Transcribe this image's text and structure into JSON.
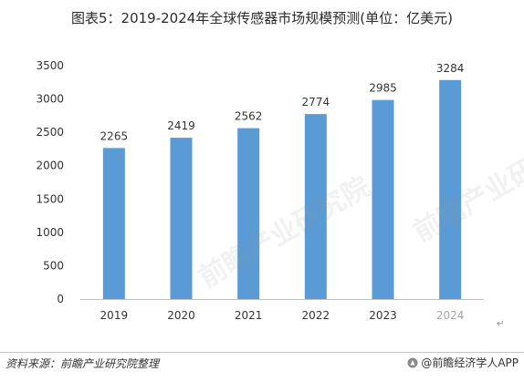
{
  "title": "图表5：2019-2024年全球传感器市场规模预测(单位：亿美元)",
  "chart_data": {
    "type": "bar",
    "title": "图表5：2019-2024年全球传感器市场规模预测(单位：亿美元)",
    "xlabel": "",
    "ylabel": "",
    "categories": [
      "2019",
      "2020",
      "2021",
      "2022",
      "2023",
      "2024"
    ],
    "values": [
      2265,
      2419,
      2562,
      2774,
      2985,
      3284
    ],
    "ylim": [
      0,
      3500
    ],
    "yticks": [
      "0",
      "500",
      "1000",
      "1500",
      "2000",
      "2500",
      "3000",
      "3500"
    ],
    "grid": false,
    "bar_color": "#5b9bd5",
    "forecast_label_color": "#a6a6a6"
  },
  "footer": {
    "source": "资料来源：前瞻产业研究院整理",
    "brand": "@前瞻经济学人APP"
  },
  "watermark": "前瞻产业研究院",
  "return_mark": "↵"
}
